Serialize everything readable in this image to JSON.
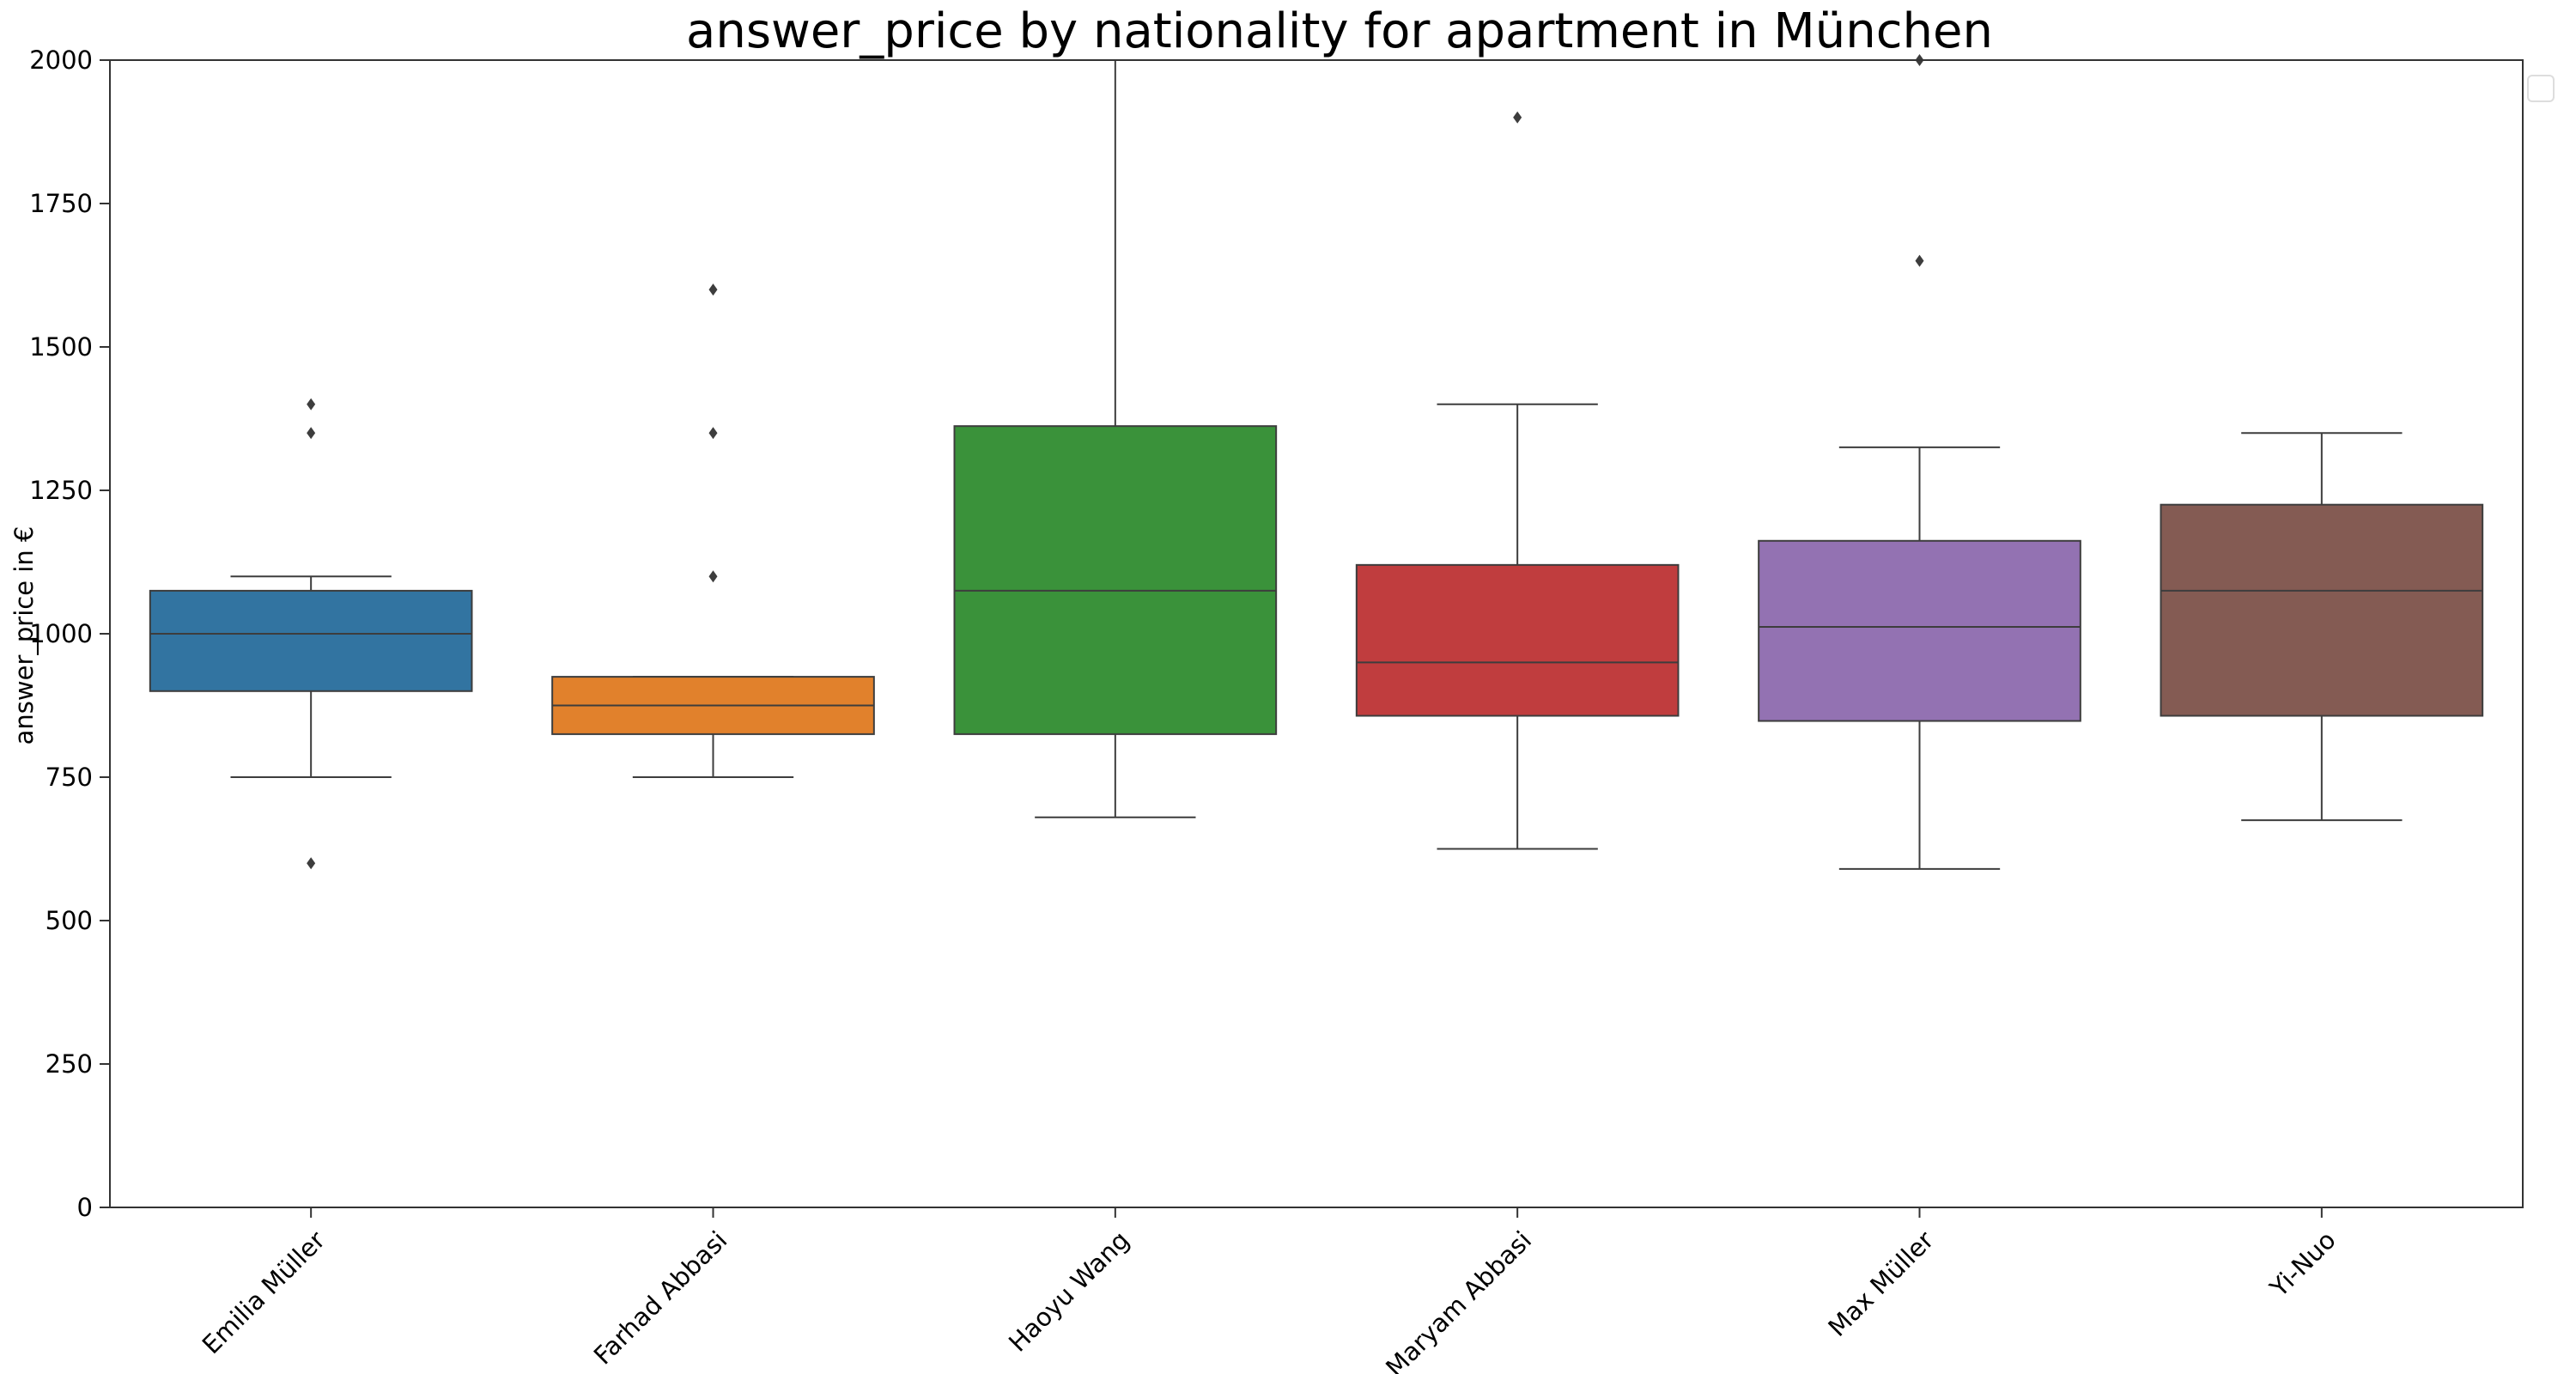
{
  "chart_data": {
    "type": "box",
    "title": "answer_price by nationality for apartment in München",
    "xlabel": "",
    "ylabel": "answer_price in €",
    "ylim": [
      0,
      2000
    ],
    "yticks": [
      0,
      250,
      500,
      750,
      1000,
      1250,
      1500,
      1750,
      2000
    ],
    "grid": false,
    "legend": "top-right (empty)",
    "categories": [
      "Emilia Müller",
      "Farhad Abbasi",
      "Haoyu Wang",
      "Maryam Abbasi",
      "Max Müller",
      "Yi-Nuo"
    ],
    "boxes": [
      {
        "category": "Emilia Müller",
        "color": "#3274a1",
        "whisker_low": 750,
        "q1": 900,
        "median": 1000,
        "q3": 1075,
        "whisker_high": 1100,
        "outliers": [
          600,
          1350,
          1400
        ]
      },
      {
        "category": "Farhad Abbasi",
        "color": "#e1812c",
        "whisker_low": 750,
        "q1": 825,
        "median": 875,
        "q3": 925,
        "whisker_high": 925,
        "outliers": [
          1100,
          1350,
          1600
        ]
      },
      {
        "category": "Haoyu Wang",
        "color": "#3a923a",
        "whisker_low": 680,
        "q1": 825,
        "median": 1075,
        "q3": 1362,
        "whisker_high": 2000,
        "outliers": []
      },
      {
        "category": "Maryam Abbasi",
        "color": "#c03d3e",
        "whisker_low": 625,
        "q1": 857,
        "median": 950,
        "q3": 1120,
        "whisker_high": 1400,
        "outliers": [
          1900
        ]
      },
      {
        "category": "Max Müller",
        "color": "#9372b2",
        "whisker_low": 590,
        "q1": 848,
        "median": 1012,
        "q3": 1162,
        "whisker_high": 1325,
        "outliers": [
          1650,
          2000
        ]
      },
      {
        "category": "Yi-Nuo",
        "color": "#845b53",
        "whisker_low": 675,
        "q1": 857,
        "median": 1075,
        "q3": 1225,
        "whisker_high": 1350,
        "outliers": []
      }
    ]
  }
}
